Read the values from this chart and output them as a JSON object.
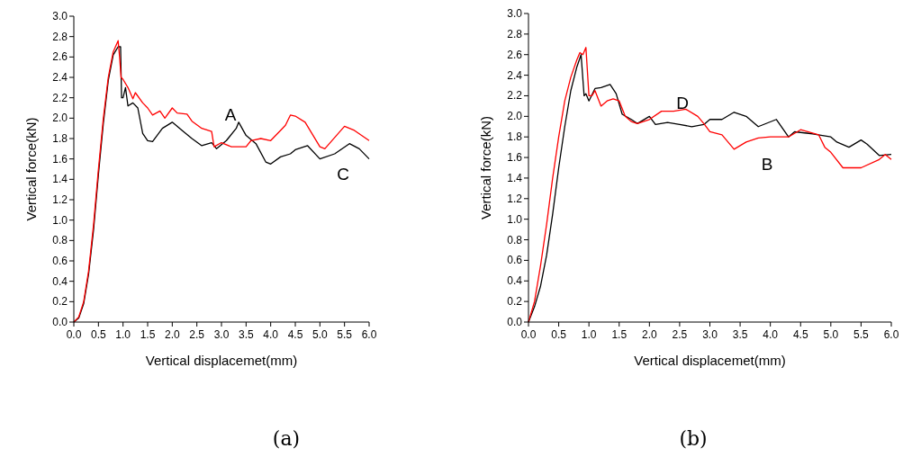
{
  "chart_data": [
    {
      "type": "line",
      "title": "(a)",
      "xlabel": "Vertical displacemet(mm)",
      "ylabel": "Vertical force(kN)",
      "xlim": [
        0,
        6
      ],
      "ylim": [
        0,
        3
      ],
      "xticks": [
        {
          "value": 0,
          "label": "0.0"
        },
        0.5,
        {
          "value": 1,
          "label": "1.0"
        },
        1.5,
        {
          "value": 2,
          "label": "2.0"
        },
        2.5,
        {
          "value": 3,
          "label": "3.0"
        },
        3.5,
        {
          "value": 4,
          "label": "4.0"
        },
        4.5,
        {
          "value": 5,
          "label": "5.0"
        },
        5.5,
        {
          "value": 6,
          "label": "6.0"
        }
      ],
      "yticks": [
        {
          "value": 0,
          "label": "0.0"
        },
        0.2,
        0.4,
        0.6,
        0.8,
        {
          "value": 1,
          "label": "1.0"
        },
        1.2,
        1.4,
        1.6,
        1.8,
        {
          "value": 2,
          "label": "2.0"
        },
        2.2,
        2.4,
        2.6,
        2.8,
        {
          "value": 3,
          "label": "3.0"
        }
      ],
      "annotations": [
        "A",
        "C"
      ],
      "series": [
        {
          "color": "#000000",
          "x": [
            0,
            0.1,
            0.2,
            0.3,
            0.4,
            0.5,
            0.6,
            0.7,
            0.8,
            0.9,
            0.95,
            0.97,
            1.0,
            1.05,
            1.1,
            1.2,
            1.3,
            1.4,
            1.5,
            1.6,
            1.8,
            2.0,
            2.2,
            2.4,
            2.6,
            2.8,
            2.9,
            3.1,
            3.3,
            3.35,
            3.5,
            3.7,
            3.9,
            4.0,
            4.2,
            4.4,
            4.5,
            4.75,
            5.0,
            5.3,
            5.6,
            5.8,
            6.0
          ],
          "values": [
            0,
            0.04,
            0.18,
            0.47,
            0.9,
            1.45,
            1.95,
            2.37,
            2.62,
            2.7,
            2.7,
            2.2,
            2.2,
            2.3,
            2.12,
            2.15,
            2.1,
            1.85,
            1.78,
            1.77,
            1.9,
            1.96,
            1.88,
            1.8,
            1.73,
            1.76,
            1.7,
            1.78,
            1.9,
            1.96,
            1.83,
            1.75,
            1.57,
            1.55,
            1.62,
            1.65,
            1.69,
            1.73,
            1.6,
            1.65,
            1.75,
            1.7,
            1.6
          ]
        },
        {
          "color": "#ff0000",
          "x": [
            0,
            0.1,
            0.2,
            0.3,
            0.4,
            0.5,
            0.6,
            0.7,
            0.8,
            0.9,
            0.93,
            0.96,
            1.0,
            1.1,
            1.2,
            1.25,
            1.4,
            1.5,
            1.6,
            1.75,
            1.85,
            2.0,
            2.1,
            2.3,
            2.4,
            2.6,
            2.8,
            2.85,
            3.0,
            3.2,
            3.5,
            3.6,
            3.8,
            4.0,
            4.2,
            4.3,
            4.4,
            4.5,
            4.7,
            5.0,
            5.1,
            5.5,
            5.7,
            6.0
          ],
          "values": [
            0,
            0.05,
            0.2,
            0.5,
            0.95,
            1.5,
            2.0,
            2.4,
            2.65,
            2.76,
            2.6,
            2.4,
            2.38,
            2.3,
            2.19,
            2.25,
            2.15,
            2.1,
            2.03,
            2.07,
            2.0,
            2.1,
            2.05,
            2.04,
            1.97,
            1.9,
            1.87,
            1.72,
            1.76,
            1.72,
            1.72,
            1.78,
            1.8,
            1.78,
            1.88,
            1.93,
            2.03,
            2.02,
            1.96,
            1.72,
            1.7,
            1.92,
            1.88,
            1.78
          ]
        }
      ]
    },
    {
      "type": "line",
      "title": "(b)",
      "xlabel": "Vertical displacemet(mm)",
      "ylabel": "Vertical force(kN)",
      "xlim": [
        0,
        6
      ],
      "ylim": [
        0,
        3
      ],
      "xticks": [
        {
          "value": 0,
          "label": "0.0"
        },
        0.5,
        {
          "value": 1,
          "label": "1.0"
        },
        1.5,
        {
          "value": 2,
          "label": "2.0"
        },
        2.5,
        {
          "value": 3,
          "label": "3.0"
        },
        3.5,
        {
          "value": 4,
          "label": "4.0"
        },
        4.5,
        {
          "value": 5,
          "label": "5.0"
        },
        5.5,
        {
          "value": 6,
          "label": "6.0"
        }
      ],
      "yticks": [
        {
          "value": 0,
          "label": "0.0"
        },
        0.2,
        0.4,
        0.6,
        0.8,
        {
          "value": 1,
          "label": "1.0"
        },
        1.2,
        1.4,
        1.6,
        1.8,
        {
          "value": 2,
          "label": "2.0"
        },
        2.2,
        2.4,
        2.6,
        2.8,
        {
          "value": 3,
          "label": "3.0"
        }
      ],
      "annotations": [
        "D",
        "B"
      ],
      "series": [
        {
          "color": "#000000",
          "x": [
            0,
            0.1,
            0.2,
            0.3,
            0.4,
            0.5,
            0.6,
            0.7,
            0.8,
            0.87,
            0.92,
            0.95,
            1.0,
            1.1,
            1.2,
            1.35,
            1.45,
            1.55,
            1.7,
            1.8,
            2.0,
            2.1,
            2.3,
            2.5,
            2.7,
            2.9,
            3.0,
            3.2,
            3.4,
            3.6,
            3.8,
            4.1,
            4.3,
            4.4,
            4.7,
            5.0,
            5.1,
            5.3,
            5.5,
            5.6,
            5.8,
            6.0
          ],
          "values": [
            0,
            0.15,
            0.35,
            0.65,
            1.05,
            1.5,
            1.9,
            2.25,
            2.48,
            2.6,
            2.2,
            2.22,
            2.15,
            2.27,
            2.28,
            2.31,
            2.22,
            2.02,
            1.97,
            1.93,
            2.0,
            1.92,
            1.94,
            1.92,
            1.9,
            1.92,
            1.97,
            1.97,
            2.04,
            2.0,
            1.9,
            1.97,
            1.8,
            1.85,
            1.83,
            1.8,
            1.75,
            1.7,
            1.77,
            1.73,
            1.62,
            1.63
          ]
        },
        {
          "color": "#ff0000",
          "x": [
            0,
            0.1,
            0.2,
            0.3,
            0.4,
            0.5,
            0.6,
            0.7,
            0.8,
            0.85,
            0.9,
            0.95,
            1.0,
            1.05,
            1.1,
            1.2,
            1.3,
            1.4,
            1.5,
            1.6,
            1.7,
            1.8,
            2.0,
            2.2,
            2.4,
            2.6,
            2.8,
            2.9,
            3.0,
            3.2,
            3.4,
            3.6,
            3.8,
            4.0,
            4.3,
            4.5,
            4.8,
            4.9,
            5.0,
            5.2,
            5.5,
            5.8,
            5.9,
            6.0
          ],
          "values": [
            0,
            0.2,
            0.55,
            0.95,
            1.4,
            1.8,
            2.15,
            2.38,
            2.55,
            2.62,
            2.6,
            2.67,
            2.2,
            2.2,
            2.25,
            2.1,
            2.15,
            2.17,
            2.15,
            2.0,
            1.95,
            1.93,
            1.97,
            2.05,
            2.05,
            2.07,
            2.0,
            1.93,
            1.85,
            1.82,
            1.68,
            1.75,
            1.79,
            1.8,
            1.8,
            1.87,
            1.82,
            1.7,
            1.65,
            1.5,
            1.5,
            1.58,
            1.63,
            1.58
          ]
        }
      ]
    }
  ]
}
